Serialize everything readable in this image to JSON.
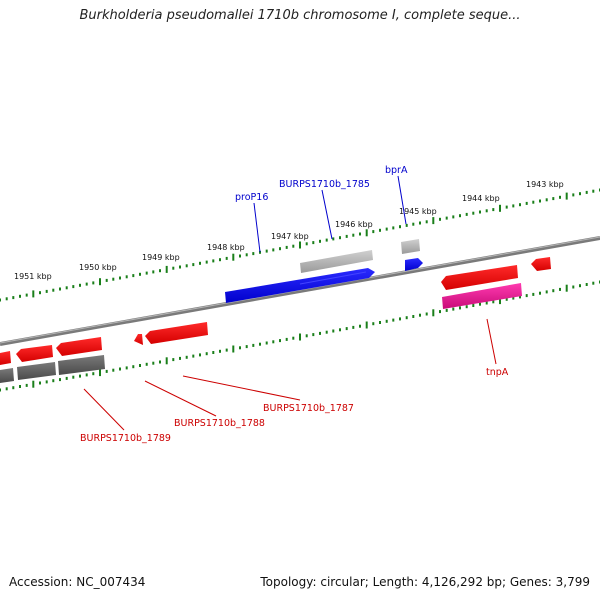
{
  "title": "Burkholderia pseudomallei 1710b chromosome I, complete seque...",
  "footer": {
    "accession": "Accession: NC_007434",
    "summary": "Topology: circular; Length: 4,126,292 bp; Genes: 3,799"
  },
  "colors": {
    "backbone": "#808080",
    "ticks": "#1a7f1a",
    "forward_gene": "#0000ee",
    "reverse_gene": "#ee0000",
    "pseudo_gene": "#a8a8a8",
    "tnp_gene": "#e0148c",
    "label_forward": "#0000cc",
    "label_reverse": "#cc0000"
  },
  "scale": {
    "unit": "kbp",
    "labels": [
      "1951 kbp",
      "1950 kbp",
      "1949 kbp",
      "1948 kbp",
      "1947 kbp",
      "1946 kbp",
      "1945 kbp",
      "1944 kbp",
      "1943 kbp"
    ]
  },
  "gene_labels": {
    "bprA": "bprA",
    "proP16": "proP16",
    "burps_1785": "BURPS1710b_1785",
    "tnpA": "tnpA",
    "burps_1787": "BURPS1710b_1787",
    "burps_1788": "BURPS1710b_1788",
    "burps_1789": "BURPS1710b_1789"
  }
}
